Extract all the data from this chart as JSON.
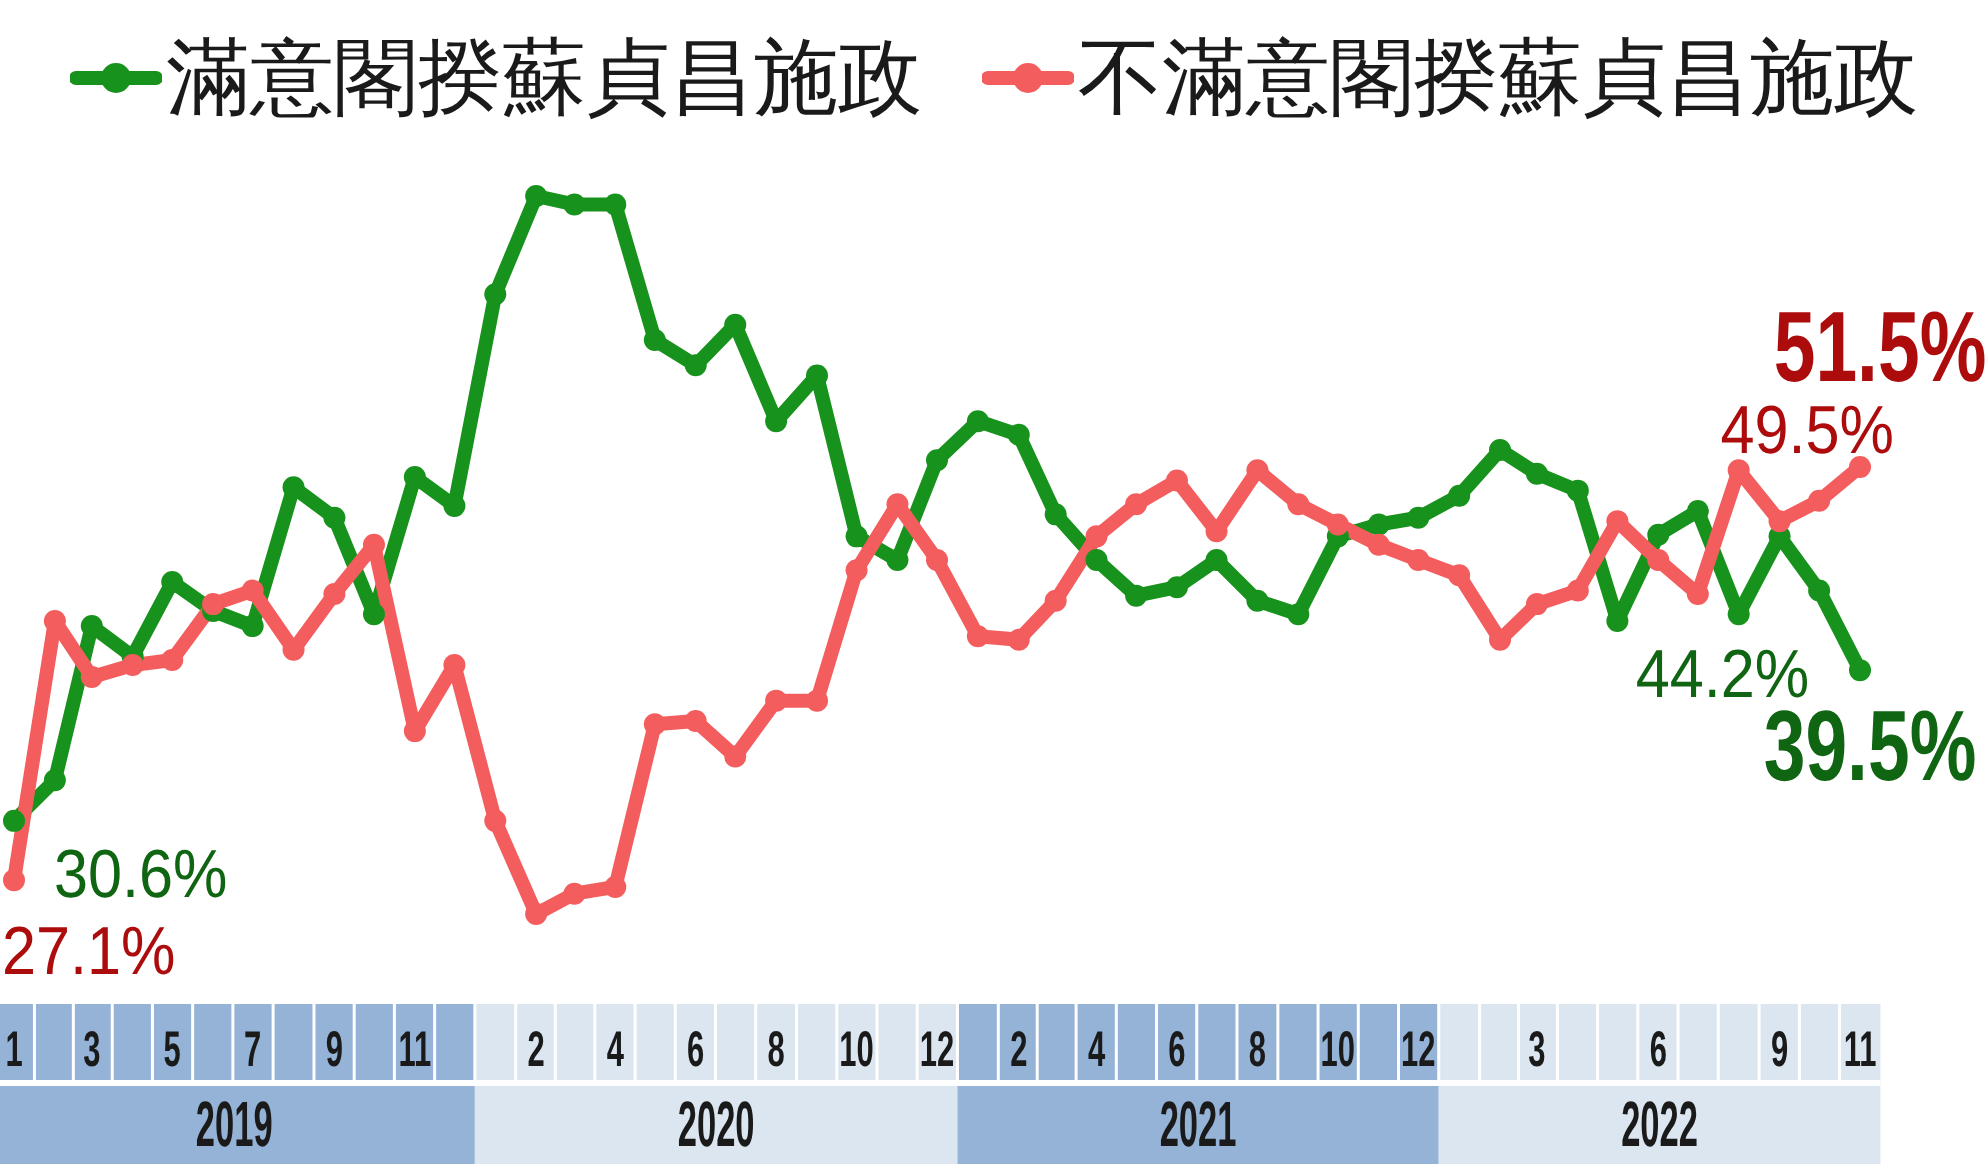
{
  "chart_data": {
    "type": "line",
    "x": [
      "2019-01",
      "2019-02",
      "2019-03",
      "2019-04",
      "2019-05",
      "2019-06",
      "2019-07",
      "2019-08",
      "2019-09",
      "2019-10",
      "2019-11",
      "2019-12",
      "2020-01",
      "2020-02",
      "2020-03",
      "2020-04",
      "2020-05",
      "2020-06",
      "2020-07",
      "2020-08",
      "2020-09",
      "2020-10",
      "2020-11",
      "2020-12",
      "2021-01",
      "2021-02",
      "2021-03",
      "2021-04",
      "2021-05",
      "2021-06",
      "2021-07",
      "2021-08",
      "2021-09",
      "2021-10",
      "2021-11",
      "2021-12",
      "2022-01",
      "2022-02",
      "2022-03",
      "2022-04",
      "2022-05",
      "2022-06",
      "2022-07",
      "2022-08",
      "2022-09",
      "2022-10",
      "2022-11"
    ],
    "xlim": [
      "2019-01",
      "2022-11"
    ],
    "xticks": [
      {
        "value": "2019-01",
        "label": "1"
      },
      {
        "value": "2019-03",
        "label": "3"
      },
      {
        "value": "2019-05",
        "label": "5"
      },
      {
        "value": "2019-07",
        "label": "7"
      },
      {
        "value": "2019-09",
        "label": "9"
      },
      {
        "value": "2019-11",
        "label": "11"
      },
      {
        "value": "2020-02",
        "label": "2"
      },
      {
        "value": "2020-04",
        "label": "4"
      },
      {
        "value": "2020-06",
        "label": "6"
      },
      {
        "value": "2020-08",
        "label": "8"
      },
      {
        "value": "2020-10",
        "label": "10"
      },
      {
        "value": "2020-12",
        "label": "12"
      },
      {
        "value": "2021-02",
        "label": "2"
      },
      {
        "value": "2021-04",
        "label": "4"
      },
      {
        "value": "2021-06",
        "label": "6"
      },
      {
        "value": "2021-08",
        "label": "8"
      },
      {
        "value": "2021-10",
        "label": "10"
      },
      {
        "value": "2021-12",
        "label": "12"
      },
      {
        "value": "2022-03",
        "label": "3"
      },
      {
        "value": "2022-06",
        "label": "6"
      },
      {
        "value": "2022-09",
        "label": "9"
      },
      {
        "value": "2022-11",
        "label": "11"
      }
    ],
    "tick_labels": "x",
    "legend": "top",
    "marker": "circle",
    "annotations": [
      "2019",
      "2020",
      "2021",
      "2022"
    ],
    "series": [
      {
        "name": "滿意閣揆蘇貞昌施政",
        "color": "#17921c",
        "values": [
          30.6,
          33.0,
          42.1,
          40.3,
          44.7,
          43.0,
          42.1,
          50.3,
          48.5,
          42.8,
          50.9,
          49.2,
          61.7,
          67.5,
          67.0,
          67.0,
          59.0,
          57.5,
          59.9,
          54.2,
          56.9,
          47.4,
          46.0,
          51.9,
          54.2,
          53.4,
          48.7,
          46.0,
          43.9,
          44.4,
          46.0,
          43.6,
          42.8,
          47.4,
          48.1,
          48.5,
          49.8,
          52.5,
          51.1,
          50.1,
          42.4,
          47.5,
          48.9,
          42.8,
          47.4,
          44.2,
          39.5
        ],
        "value_labels": [
          "30.6%",
          null,
          null,
          null,
          null,
          null,
          null,
          null,
          null,
          null,
          null,
          null,
          null,
          null,
          null,
          null,
          null,
          null,
          null,
          null,
          null,
          null,
          null,
          null,
          null,
          null,
          null,
          null,
          null,
          null,
          null,
          null,
          null,
          null,
          null,
          null,
          null,
          null,
          null,
          null,
          null,
          null,
          null,
          null,
          null,
          "44.2%",
          "39.5%"
        ]
      },
      {
        "name": "不滿意閣揆蘇貞昌施政",
        "color": "#f45d5d",
        "values": [
          27.1,
          42.4,
          39.1,
          39.8,
          40.1,
          43.4,
          44.2,
          40.7,
          44.0,
          46.9,
          35.9,
          39.8,
          30.6,
          25.1,
          26.3,
          26.7,
          36.3,
          36.5,
          34.4,
          37.7,
          37.7,
          45.4,
          49.3,
          46.0,
          41.5,
          41.3,
          43.6,
          47.4,
          49.3,
          50.7,
          47.7,
          51.3,
          49.3,
          48.1,
          46.9,
          46.0,
          45.1,
          41.3,
          43.4,
          44.2,
          48.3,
          46.0,
          44.0,
          51.3,
          48.3,
          49.5,
          51.5
        ],
        "value_labels": [
          "27.1%",
          null,
          null,
          null,
          null,
          null,
          null,
          null,
          null,
          null,
          null,
          null,
          null,
          null,
          null,
          null,
          null,
          null,
          null,
          null,
          null,
          null,
          null,
          null,
          null,
          null,
          null,
          null,
          null,
          null,
          null,
          null,
          null,
          null,
          null,
          null,
          null,
          null,
          null,
          null,
          null,
          null,
          null,
          null,
          null,
          "49.5%",
          "51.5%"
        ]
      }
    ]
  }
}
